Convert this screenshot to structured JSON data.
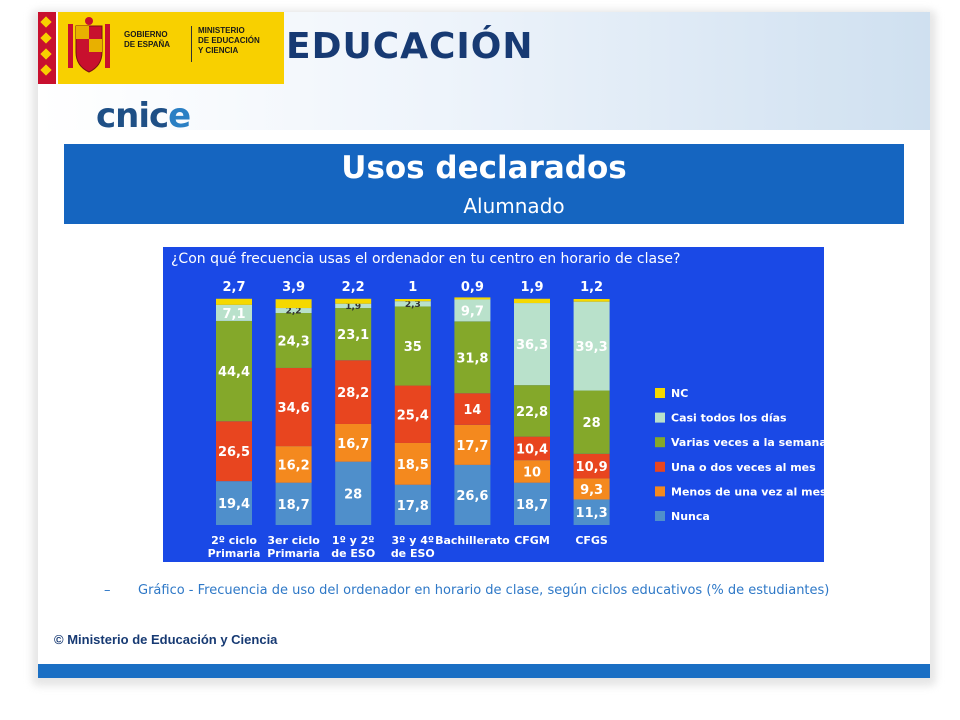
{
  "header": {
    "gov_line1": "GOBIERNO",
    "gov_line2": "DE ESPAÑA",
    "ministry_line1": "MINISTERIO",
    "ministry_line2": "DE EDUCACIÓN",
    "ministry_line3": "Y CIENCIA",
    "brand": "EDUCACIÓN",
    "logo_cnice_a": "cnic",
    "logo_cnice_b": "e"
  },
  "title": "Usos declarados",
  "subtitle": "Alumnado",
  "caption_dash": "–",
  "caption": "Gráfico - Frecuencia de uso del ordenador en horario de clase, según ciclos educativos (% de estudiantes)",
  "copyright": "© Ministerio de Educación y Ciencia",
  "colors": {
    "title_bar": "#1565c0",
    "chart_bg": "#1a49e6",
    "NC": "#f5d800",
    "Casi todos los días": "#b9e1cb",
    "Varias veces a la semana": "#84a82a",
    "Una o dos veces al mes": "#e8451f",
    "Menos de una vez al mes": "#f4891e",
    "Nunca": "#4f8fcb"
  },
  "chart_data": {
    "type": "bar",
    "stacked": true,
    "title": "¿Con qué frecuencia usas el ordenador en tu centro en horario de clase?",
    "categories": [
      "2º ciclo\nPrimaria",
      "3er ciclo\nPrimaria",
      "1º y 2º\nde ESO",
      "3º y 4º\nde ESO",
      "Bachillerato",
      "CFGM",
      "CFGS"
    ],
    "series": [
      {
        "name": "Nunca",
        "values": [
          19.4,
          18.7,
          28.0,
          17.8,
          26.6,
          18.7,
          11.3
        ]
      },
      {
        "name": "Menos de una vez al mes",
        "values": [
          0,
          16.2,
          16.7,
          18.5,
          17.7,
          10.0,
          9.3
        ]
      },
      {
        "name": "Una o dos veces al mes",
        "values": [
          26.5,
          34.6,
          28.2,
          25.4,
          14.0,
          10.4,
          10.9
        ]
      },
      {
        "name": "Varias veces a la semana",
        "values": [
          44.4,
          24.3,
          23.1,
          35.0,
          31.8,
          22.8,
          28.0
        ]
      },
      {
        "name": "Casi todos los días",
        "values": [
          7.1,
          2.2,
          1.9,
          2.3,
          9.7,
          36.3,
          39.3
        ]
      },
      {
        "name": "NC",
        "values": [
          2.7,
          3.9,
          2.2,
          1.0,
          0.9,
          1.9,
          1.2
        ]
      }
    ],
    "legend": [
      "NC",
      "Casi todos los días",
      "Varias veces a la semana",
      "Una o dos veces al mes",
      "Menos de una vez al mes",
      "Nunca"
    ],
    "legend_position": "right",
    "ylim": [
      0,
      100
    ],
    "grid": false
  }
}
